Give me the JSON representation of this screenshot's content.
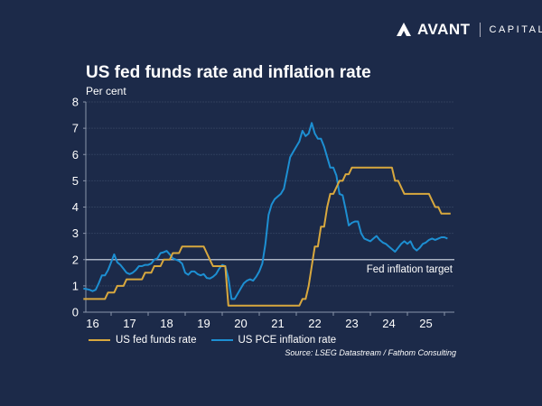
{
  "logo": {
    "brand": "AVANT",
    "suffix": "CAPITAL"
  },
  "colors": {
    "background": "#1c2a49",
    "fed_funds": "#d8a83e",
    "pce": "#1d8fd2",
    "target": "#aab3c2",
    "grid": "#2f3e5c"
  },
  "chart_data": {
    "type": "line",
    "title": "US fed funds rate and inflation rate",
    "ylabel": "Per cent",
    "ylim": [
      0,
      8
    ],
    "yticks": [
      0,
      1,
      2,
      3,
      4,
      5,
      6,
      7,
      8
    ],
    "xlim": [
      "2016-04",
      "2026-03"
    ],
    "xtick_labels": [
      "16",
      "17",
      "18",
      "19",
      "20",
      "21",
      "22",
      "23",
      "24",
      "25"
    ],
    "grid": true,
    "legend_placement": "bottom",
    "annotations": [
      {
        "text": "Fed inflation target",
        "y": 2
      }
    ],
    "series": [
      {
        "name": "US fed funds rate",
        "start": "2016-04",
        "frequency": "monthly",
        "values": [
          0.5,
          0.5,
          0.5,
          0.5,
          0.5,
          0.5,
          0.5,
          0.5,
          0.75,
          0.75,
          0.75,
          1.0,
          1.0,
          1.0,
          1.25,
          1.25,
          1.25,
          1.25,
          1.25,
          1.25,
          1.5,
          1.5,
          1.5,
          1.75,
          1.75,
          1.75,
          2.0,
          2.0,
          2.0,
          2.25,
          2.25,
          2.25,
          2.5,
          2.5,
          2.5,
          2.5,
          2.5,
          2.5,
          2.5,
          2.5,
          2.25,
          2.0,
          1.75,
          1.75,
          1.75,
          1.75,
          1.75,
          0.25,
          0.25,
          0.25,
          0.25,
          0.25,
          0.25,
          0.25,
          0.25,
          0.25,
          0.25,
          0.25,
          0.25,
          0.25,
          0.25,
          0.25,
          0.25,
          0.25,
          0.25,
          0.25,
          0.25,
          0.25,
          0.25,
          0.25,
          0.25,
          0.5,
          0.5,
          1.0,
          1.75,
          2.5,
          2.5,
          3.25,
          3.25,
          4.0,
          4.5,
          4.5,
          4.75,
          5.0,
          5.0,
          5.25,
          5.25,
          5.5,
          5.5,
          5.5,
          5.5,
          5.5,
          5.5,
          5.5,
          5.5,
          5.5,
          5.5,
          5.5,
          5.5,
          5.5,
          5.5,
          5.0,
          5.0,
          4.75,
          4.5,
          4.5,
          4.5,
          4.5,
          4.5,
          4.5,
          4.5,
          4.5,
          4.5,
          4.25,
          4.0,
          4.0,
          3.75,
          3.75,
          3.75,
          3.75
        ]
      },
      {
        "name": "US PCE inflation rate",
        "start": "2016-04",
        "frequency": "monthly",
        "values": [
          0.9,
          0.88,
          0.85,
          0.8,
          0.85,
          1.1,
          1.4,
          1.4,
          1.6,
          1.9,
          2.2,
          1.9,
          1.8,
          1.65,
          1.5,
          1.45,
          1.5,
          1.6,
          1.75,
          1.75,
          1.8,
          1.8,
          1.85,
          2.0,
          2.05,
          2.25,
          2.28,
          2.33,
          2.2,
          2.05,
          2.0,
          1.95,
          1.85,
          1.5,
          1.42,
          1.55,
          1.55,
          1.45,
          1.4,
          1.45,
          1.3,
          1.28,
          1.35,
          1.45,
          1.65,
          1.8,
          1.75,
          1.3,
          0.5,
          0.5,
          0.7,
          0.9,
          1.1,
          1.2,
          1.25,
          1.2,
          1.35,
          1.55,
          1.85,
          2.6,
          3.7,
          4.1,
          4.3,
          4.4,
          4.5,
          4.7,
          5.3,
          5.9,
          6.1,
          6.3,
          6.5,
          6.9,
          6.7,
          6.8,
          7.2,
          6.8,
          6.6,
          6.6,
          6.3,
          5.9,
          5.5,
          5.5,
          5.2,
          4.5,
          4.45,
          3.9,
          3.3,
          3.4,
          3.45,
          3.45,
          3.0,
          2.8,
          2.75,
          2.7,
          2.8,
          2.9,
          2.75,
          2.65,
          2.6,
          2.5,
          2.4,
          2.3,
          2.45,
          2.6,
          2.7,
          2.6,
          2.7,
          2.45,
          2.35,
          2.45,
          2.6,
          2.65,
          2.75,
          2.8,
          2.75,
          2.8,
          2.85,
          2.85,
          2.8
        ]
      }
    ],
    "source": "Source: LSEG Datastream / Fathom Consulting"
  }
}
